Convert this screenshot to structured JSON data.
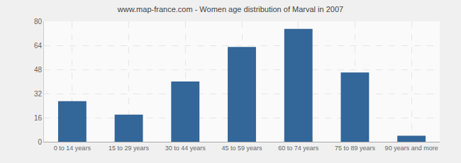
{
  "chart_data": {
    "type": "bar",
    "title": "www.map-france.com - Women age distribution of Marval in 2007",
    "categories": [
      "0 to 14 years",
      "15 to 29 years",
      "30 to 44 years",
      "45 to 59 years",
      "60 to 74 years",
      "75 to 89 years",
      "90 years and more"
    ],
    "values": [
      27,
      18,
      40,
      63,
      75,
      46,
      4
    ],
    "color": "#336699",
    "ylim": [
      0,
      80
    ],
    "yticks": [
      0,
      16,
      32,
      48,
      64,
      80
    ],
    "grid": true
  }
}
